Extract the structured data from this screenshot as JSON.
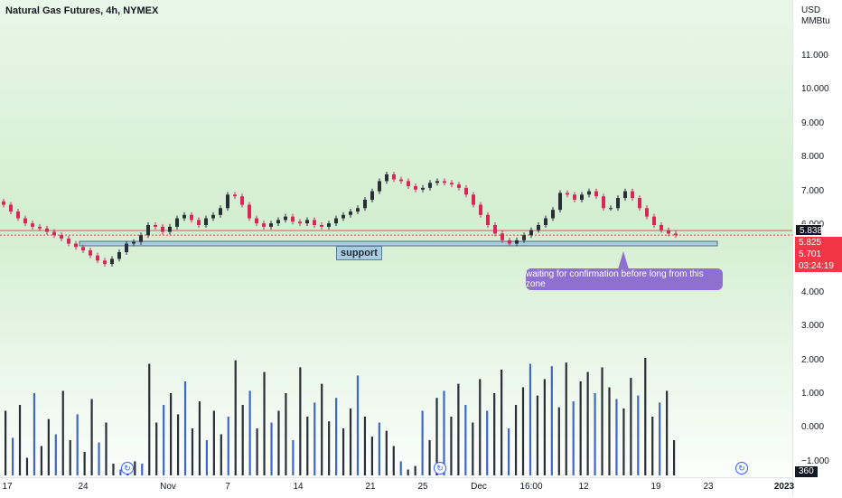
{
  "header": {
    "title": "Natural Gas Futures, 4h, NYMEX"
  },
  "price_axis": {
    "currency": "USD",
    "unit": "MMBtu",
    "ticks": [
      "11.000",
      "10.000",
      "9.000",
      "8.000",
      "7.000",
      "6.000",
      "5.000",
      "4.000",
      "3.000",
      "2.000",
      "1.000",
      "0.000",
      "−1.000"
    ]
  },
  "time_axis": {
    "ticks": [
      {
        "label": "17"
      },
      {
        "label": "24"
      },
      {
        "label": "Nov"
      },
      {
        "label": "7"
      },
      {
        "label": "14"
      },
      {
        "label": "21"
      },
      {
        "label": "25"
      },
      {
        "label": "Dec"
      },
      {
        "label": "16:00"
      },
      {
        "label": "12"
      },
      {
        "label": "19"
      },
      {
        "label": "23"
      },
      {
        "label": "2023"
      }
    ]
  },
  "badges": {
    "last_price": "5.838",
    "high_price": "5.825",
    "close_price": "5.701",
    "countdown": "03:24:19",
    "volume": "360"
  },
  "annotations": {
    "support_label": "support",
    "note": "waiting for confirmation before long from this zone"
  },
  "colors": {
    "up": "#2a2e39",
    "down": "#d8285a",
    "vol_blue": "#3f67c9",
    "vol_dark": "#2a2e39",
    "support_fill": "#a9cde0",
    "callout": "#8f6fd0",
    "price_line": "#f23645"
  },
  "chart_data": {
    "type": "candlestick",
    "title": "Natural Gas Futures, 4h, NYMEX",
    "y_unit": "USD/MMBtu",
    "ylim": [
      -1.3,
      12.0
    ],
    "support_zone": [
      5.4,
      5.55
    ],
    "current_price": 5.701,
    "grid": false,
    "close_series": [
      6.6,
      6.4,
      6.2,
      6.05,
      5.95,
      5.9,
      5.8,
      5.7,
      5.6,
      5.45,
      5.35,
      5.25,
      5.1,
      4.95,
      4.85,
      5.0,
      5.2,
      5.45,
      5.5,
      5.7,
      6.0,
      5.95,
      5.8,
      5.95,
      6.2,
      6.3,
      6.15,
      6.0,
      6.2,
      6.3,
      6.5,
      6.9,
      6.85,
      6.6,
      6.2,
      6.05,
      5.95,
      6.05,
      6.15,
      6.25,
      6.1,
      6.05,
      6.15,
      6.0,
      5.95,
      6.05,
      6.2,
      6.3,
      6.4,
      6.5,
      6.75,
      7.0,
      7.3,
      7.5,
      7.35,
      7.3,
      7.15,
      7.05,
      7.1,
      7.25,
      7.3,
      7.25,
      7.2,
      7.1,
      6.9,
      6.6,
      6.3,
      6.0,
      5.75,
      5.55,
      5.45,
      5.55,
      5.7,
      5.85,
      6.0,
      6.2,
      6.45,
      6.95,
      6.9,
      6.75,
      6.9,
      7.0,
      6.85,
      6.5,
      6.5,
      6.8,
      7.0,
      6.8,
      6.5,
      6.25,
      6.0,
      5.85,
      5.75,
      5.7
    ],
    "volume_relative": [
      0.55,
      0.32,
      0.6,
      0.15,
      0.7,
      0.25,
      0.48,
      0.35,
      0.72,
      0.3,
      0.52,
      0.2,
      0.65,
      0.28,
      0.45,
      0.1,
      0.05,
      0.08,
      0.12,
      0.1,
      0.95,
      0.45,
      0.6,
      0.7,
      0.52,
      0.8,
      0.4,
      0.63,
      0.3,
      0.55,
      0.35,
      0.5,
      0.98,
      0.6,
      0.72,
      0.4,
      0.88,
      0.45,
      0.55,
      0.7,
      0.3,
      0.92,
      0.5,
      0.62,
      0.78,
      0.46,
      0.66,
      0.4,
      0.57,
      0.85,
      0.5,
      0.33,
      0.45,
      0.38,
      0.25,
      0.12,
      0.05,
      0.08,
      0.55,
      0.3,
      0.66,
      0.72,
      0.5,
      0.78,
      0.6,
      0.45,
      0.82,
      0.55,
      0.7,
      0.9,
      0.4,
      0.6,
      0.75,
      0.95,
      0.68,
      0.82,
      0.93,
      0.58,
      0.96,
      0.63,
      0.8,
      0.88,
      0.7,
      0.92,
      0.75,
      0.65,
      0.57,
      0.83,
      0.68,
      1.0,
      0.5,
      0.62,
      0.72,
      0.3
    ]
  }
}
